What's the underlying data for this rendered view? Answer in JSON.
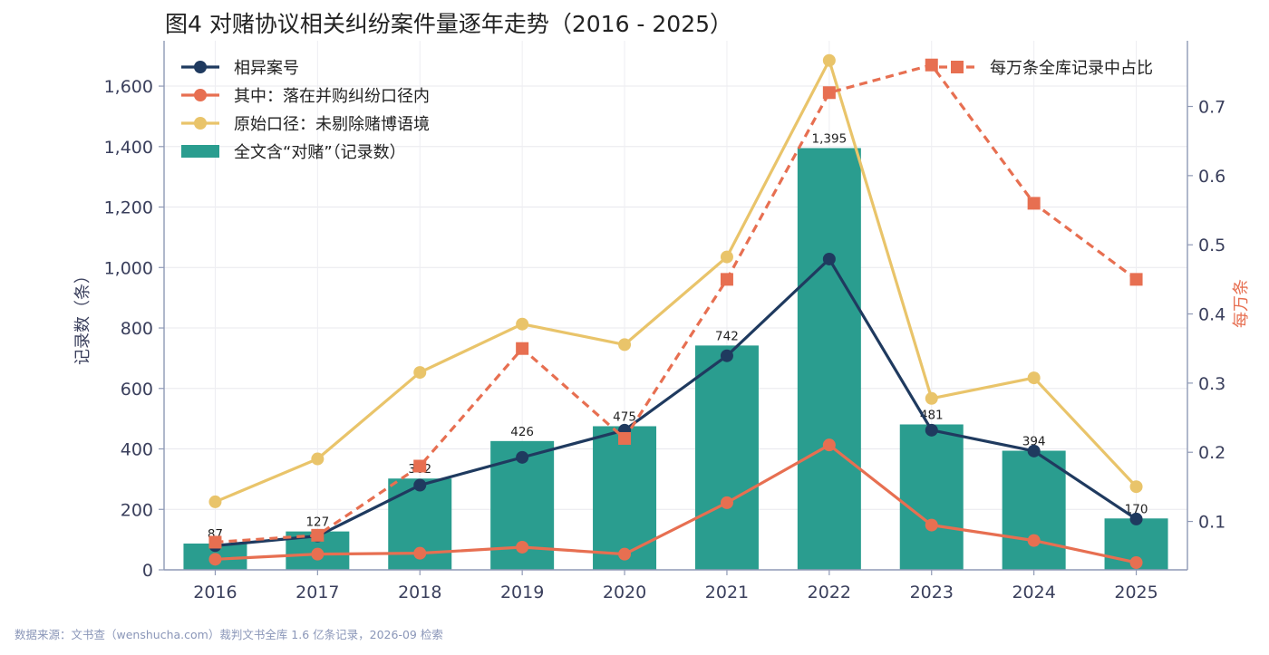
{
  "chart_data": {
    "type": "bar",
    "title": "图4  对赌协议相关纠纷案件量逐年走势（2016 - 2025）",
    "ylabel": "记录数（条）",
    "y2label": "每万条",
    "ylim": [
      0,
      1750
    ],
    "y2lim": [
      0.03,
      0.795
    ],
    "categories": [
      "2016",
      "2017",
      "2018",
      "2019",
      "2020",
      "2021",
      "2022",
      "2023",
      "2024",
      "2025"
    ],
    "yticks": [
      "0",
      "200",
      "400",
      "600",
      "800",
      "1,000",
      "1,200",
      "1,400",
      "1,600"
    ],
    "y2ticks": [
      "0.1",
      "0.2",
      "0.3",
      "0.4",
      "0.5",
      "0.6",
      "0.7"
    ],
    "bar_series": {
      "name": "全文含“对赌”（记录数）",
      "color": "#2a9d8f",
      "values": [
        87,
        127,
        302,
        426,
        475,
        742,
        1395,
        481,
        394,
        170
      ],
      "labels": [
        "87",
        "127",
        "302",
        "426",
        "475",
        "742",
        "1,395",
        "481",
        "394",
        "170"
      ]
    },
    "series": [
      {
        "name": "相异案号",
        "color": "#1f3a5f",
        "marker": "circle",
        "axis": "left",
        "values": [
          80,
          112,
          280,
          372,
          462,
          708,
          1028,
          462,
          393,
          168
        ]
      },
      {
        "name": "其中：落在并购纠纷口径内",
        "color": "#e76f51",
        "marker": "circle",
        "axis": "left",
        "values": [
          35,
          52,
          55,
          75,
          52,
          222,
          413,
          148,
          97,
          24
        ]
      },
      {
        "name": "原始口径：未剔除赌博语境",
        "color": "#e9c46a",
        "marker": "circle",
        "axis": "left",
        "values": [
          225,
          367,
          653,
          813,
          745,
          1035,
          1685,
          567,
          635,
          275
        ]
      },
      {
        "name": "每万条全库记录中占比",
        "color": "#e76f51",
        "marker": "square",
        "axis": "right",
        "dashed": true,
        "values": [
          0.07,
          0.08,
          0.18,
          0.35,
          0.22,
          0.45,
          0.72,
          0.76,
          0.56,
          0.45
        ]
      }
    ],
    "grid": true,
    "legend_left_position": "top-left",
    "legend_right_position": "top-right"
  },
  "footnote": "数据来源：文书查（wenshucha.com）裁判文书全库 1.6 亿条记录，2026-09 检索"
}
